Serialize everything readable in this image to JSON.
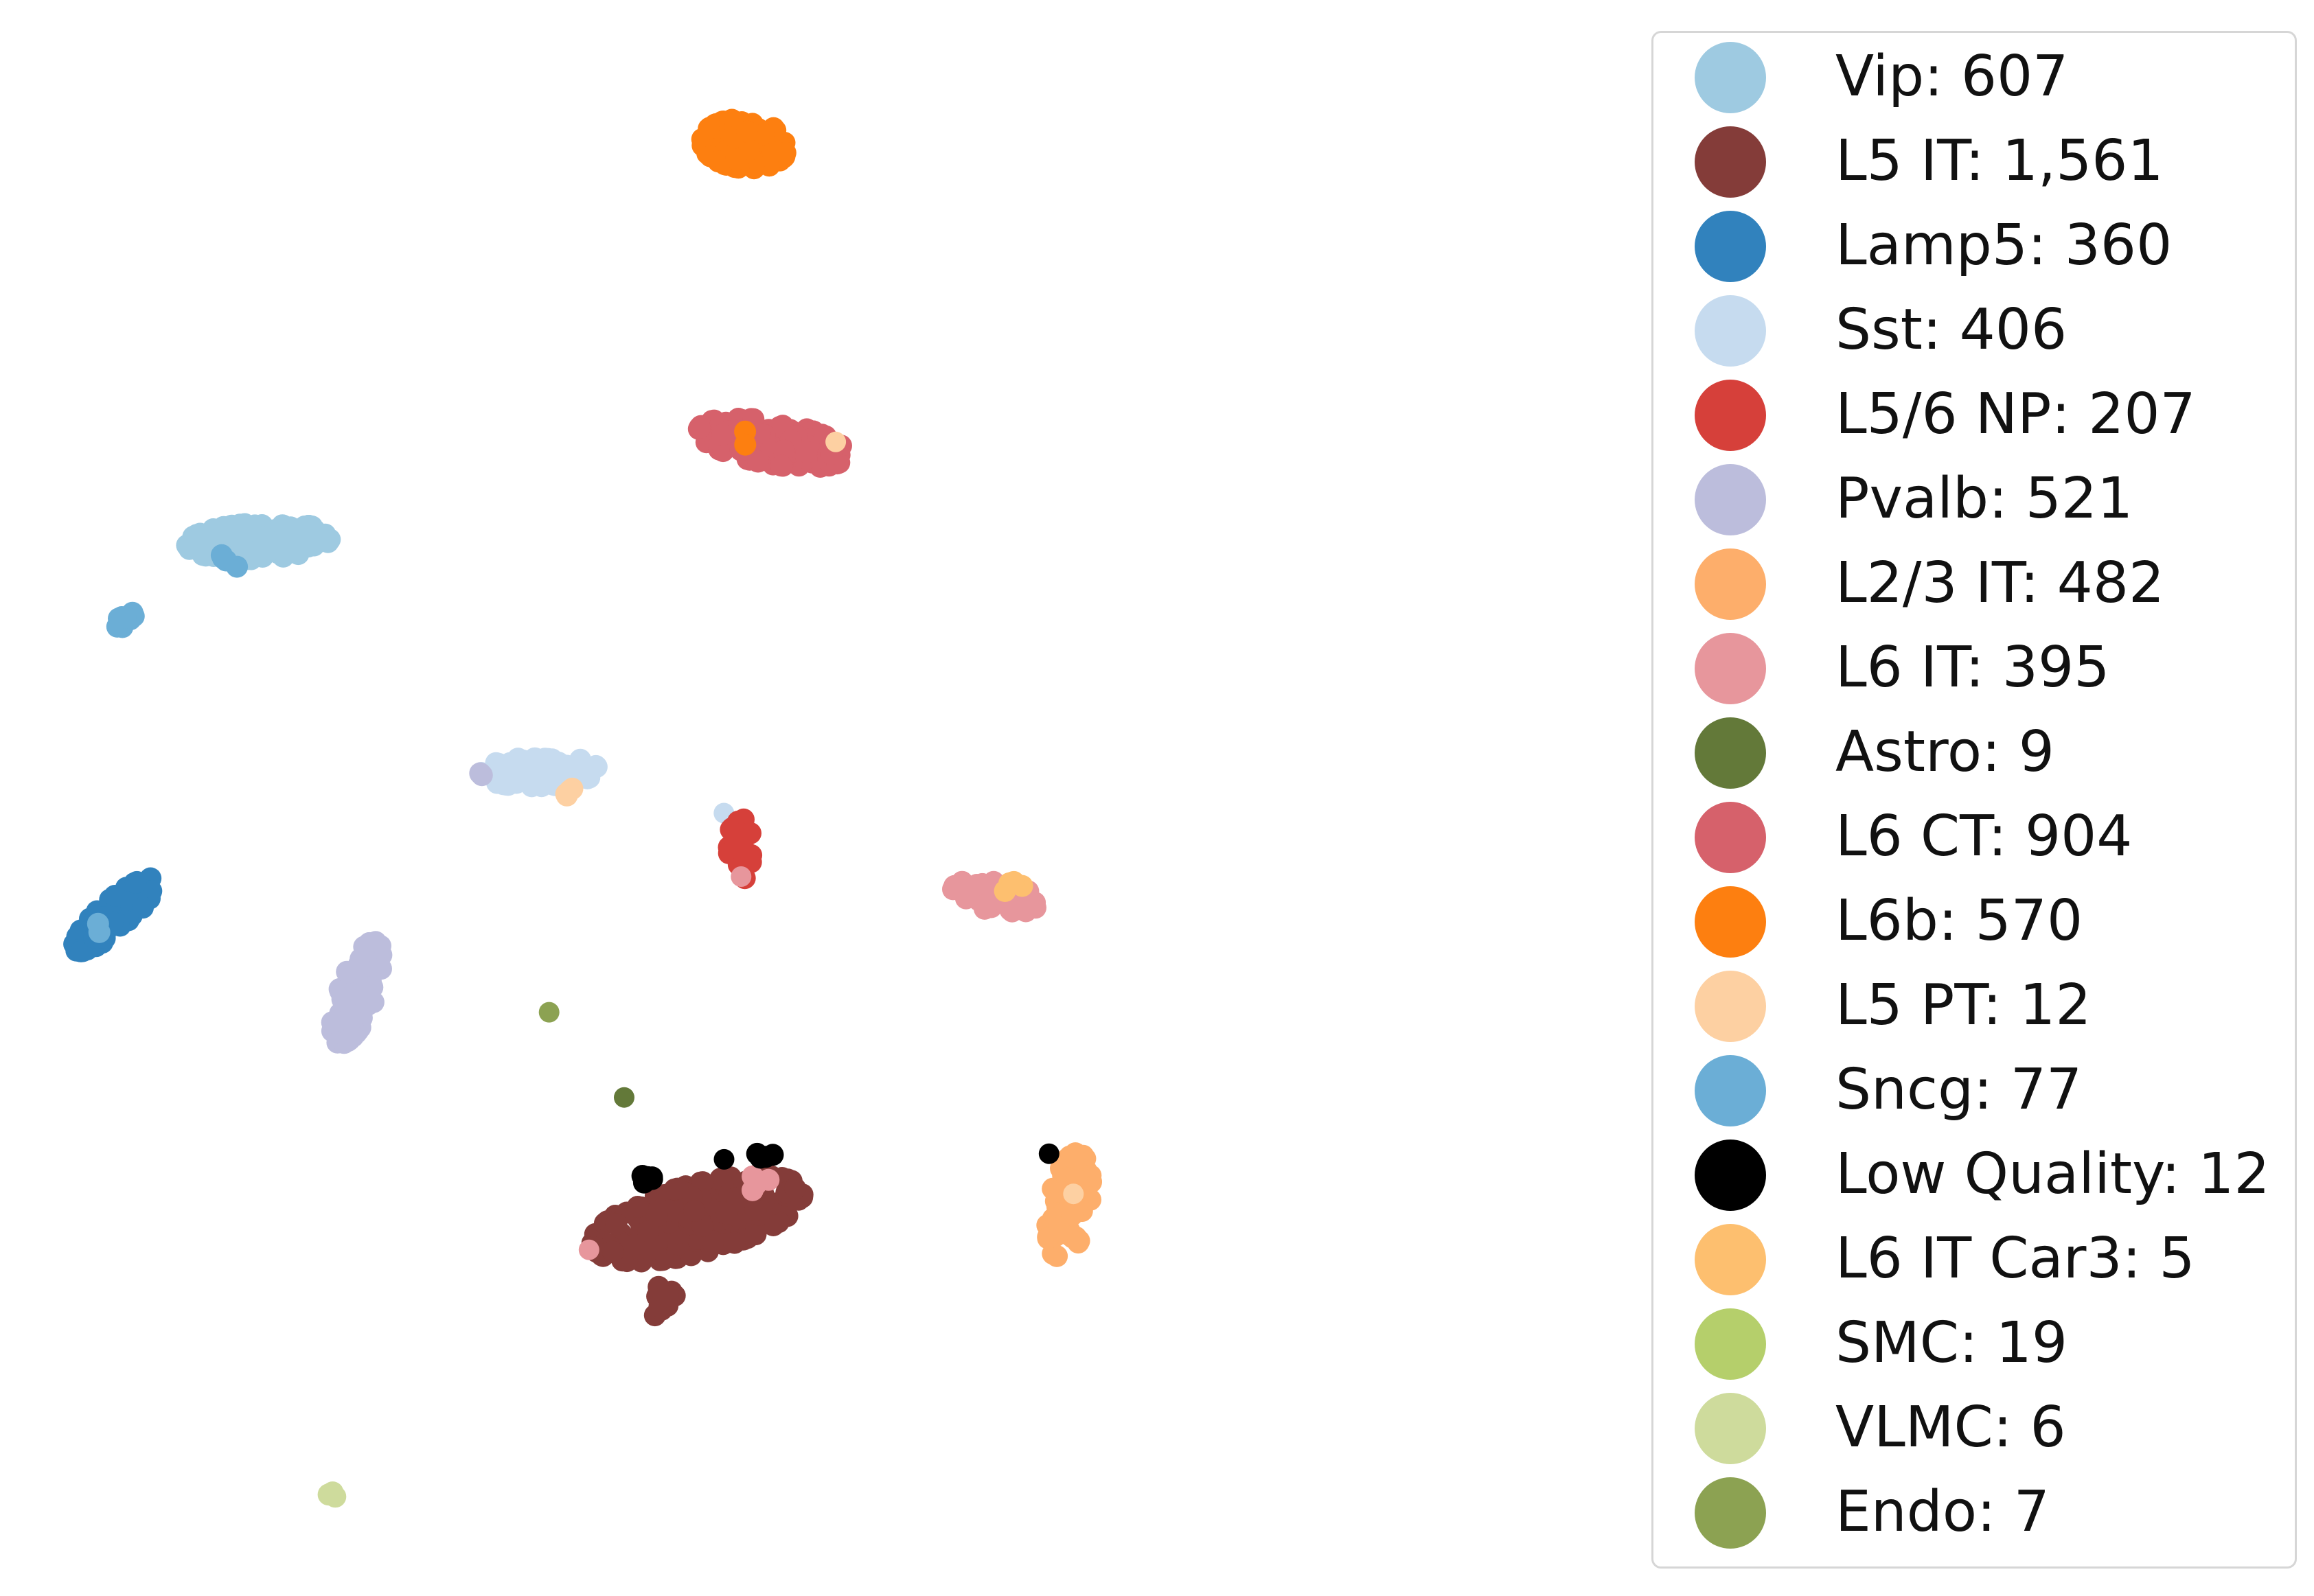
{
  "chart_data": {
    "type": "scatter",
    "title": "",
    "xlabel": "",
    "ylabel": "",
    "axes_visible": false,
    "grid": false,
    "legend_placement": "right",
    "xlim": [
      0,
      100
    ],
    "ylim": [
      0,
      100
    ],
    "series": [
      {
        "name": "Vip: 607",
        "color": "#9ecae1",
        "clusters": [
          {
            "x": 15.0,
            "y": 66.5,
            "sx": 4.3,
            "sy": 1.1,
            "angle": 3,
            "n": 150
          }
        ]
      },
      {
        "name": "L5 IT: 1,561",
        "color": "#843c39",
        "clusters": [
          {
            "x": 42.5,
            "y": 23.0,
            "sx": 6.5,
            "sy": 2.1,
            "angle": 15,
            "n": 240
          },
          {
            "x": 40.3,
            "y": 17.6,
            "sx": 0.9,
            "sy": 1.0,
            "angle": 0,
            "n": 14
          }
        ]
      },
      {
        "name": "Lamp5: 360",
        "color": "#3182bd",
        "clusters": [
          {
            "x": 6.0,
            "y": 42.5,
            "sx": 3.2,
            "sy": 0.9,
            "angle": 42,
            "n": 90
          }
        ]
      },
      {
        "name": "Sst: 406",
        "color": "#c6dbef",
        "clusters": [
          {
            "x": 32.6,
            "y": 51.7,
            "sx": 3.5,
            "sy": 0.9,
            "angle": 2,
            "n": 90
          },
          {
            "x": 44.0,
            "y": 49.0,
            "sx": 0.2,
            "sy": 0.2,
            "angle": 0,
            "n": 1
          }
        ]
      },
      {
        "name": "L5/6 NP: 207",
        "color": "#d6403a",
        "clusters": [
          {
            "x": 45.2,
            "y": 46.8,
            "sx": 0.7,
            "sy": 2.0,
            "angle": 0,
            "n": 35
          }
        ]
      },
      {
        "name": "Pvalb: 521",
        "color": "#bcbddc",
        "clusters": [
          {
            "x": 21.2,
            "y": 37.5,
            "sx": 3.3,
            "sy": 1.1,
            "angle": 70,
            "n": 95
          },
          {
            "x": 29.0,
            "y": 51.5,
            "sx": 0.15,
            "sy": 0.15,
            "angle": 0,
            "n": 2
          }
        ]
      },
      {
        "name": "L2/3 IT: 482",
        "color": "#fdae6b",
        "clusters": [
          {
            "x": 65.8,
            "y": 23.8,
            "sx": 3.3,
            "sy": 1.2,
            "angle": 80,
            "n": 80
          }
        ]
      },
      {
        "name": "L6 IT: 395",
        "color": "#e7969c",
        "clusters": [
          {
            "x": 61.2,
            "y": 43.7,
            "sx": 2.6,
            "sy": 0.9,
            "angle": -10,
            "n": 60
          },
          {
            "x": 45.3,
            "y": 44.9,
            "sx": 0.1,
            "sy": 0.1,
            "angle": 0,
            "n": 1
          },
          {
            "x": 46.3,
            "y": 25.6,
            "sx": 1.2,
            "sy": 1.0,
            "angle": 0,
            "n": 4
          },
          {
            "x": 35.7,
            "y": 21.0,
            "sx": 0.1,
            "sy": 0.1,
            "angle": 0,
            "n": 1
          }
        ]
      },
      {
        "name": "Astro: 9",
        "color": "#637939",
        "clusters": [
          {
            "x": 37.9,
            "y": 30.8,
            "sx": 0.1,
            "sy": 0.1,
            "angle": 0,
            "n": 1
          }
        ]
      },
      {
        "name": "L6 CT: 904",
        "color": "#d6616b",
        "clusters": [
          {
            "x": 47.2,
            "y": 72.8,
            "sx": 4.5,
            "sy": 1.3,
            "angle": -10,
            "n": 140
          }
        ]
      },
      {
        "name": "L6b: 570",
        "color": "#fd7f10",
        "clusters": [
          {
            "x": 45.5,
            "y": 92.0,
            "sx": 2.6,
            "sy": 1.5,
            "angle": -5,
            "n": 100
          },
          {
            "x": 45.6,
            "y": 72.6,
            "sx": 0.6,
            "sy": 0.9,
            "angle": 0,
            "n": 2
          }
        ]
      },
      {
        "name": "L5 PT: 12",
        "color": "#fdd0a2",
        "clusters": [
          {
            "x": 34.2,
            "y": 50.5,
            "sx": 0.5,
            "sy": 0.4,
            "angle": 0,
            "n": 4
          },
          {
            "x": 51.1,
            "y": 72.8,
            "sx": 0.1,
            "sy": 0.1,
            "angle": 0,
            "n": 1
          },
          {
            "x": 66.0,
            "y": 24.5,
            "sx": 0.1,
            "sy": 0.1,
            "angle": 0,
            "n": 1
          }
        ]
      },
      {
        "name": "Sncg: 77",
        "color": "#6baed6",
        "clusters": [
          {
            "x": 6.7,
            "y": 61.5,
            "sx": 1.1,
            "sy": 0.3,
            "angle": 38,
            "n": 12
          },
          {
            "x": 13.3,
            "y": 65.3,
            "sx": 0.7,
            "sy": 0.5,
            "angle": 0,
            "n": 4
          },
          {
            "x": 5.0,
            "y": 41.4,
            "sx": 0.6,
            "sy": 0.5,
            "angle": 0,
            "n": 2
          }
        ]
      },
      {
        "name": "Low Quality: 12",
        "color": "#000000",
        "clusters": [
          {
            "x": 39.4,
            "y": 25.6,
            "sx": 0.6,
            "sy": 0.3,
            "angle": 0,
            "n": 5
          },
          {
            "x": 46.6,
            "y": 27.1,
            "sx": 0.6,
            "sy": 0.3,
            "angle": 0,
            "n": 4
          },
          {
            "x": 44.2,
            "y": 26.8,
            "sx": 0.1,
            "sy": 0.1,
            "angle": 0,
            "n": 1
          },
          {
            "x": 64.5,
            "y": 27.1,
            "sx": 0.1,
            "sy": 0.1,
            "angle": 0,
            "n": 1
          }
        ]
      },
      {
        "name": "L6 IT Car3: 5",
        "color": "#fdbf6f",
        "clusters": [
          {
            "x": 62.2,
            "y": 44.4,
            "sx": 0.9,
            "sy": 0.4,
            "angle": 0,
            "n": 5
          }
        ]
      },
      {
        "name": "SMC: 19",
        "color": "#b5cf6b",
        "clusters": []
      },
      {
        "name": "VLMC: 6",
        "color": "#cedb9c",
        "clusters": [
          {
            "x": 19.7,
            "y": 5.3,
            "sx": 0.3,
            "sy": 0.2,
            "angle": 0,
            "n": 3
          }
        ]
      },
      {
        "name": "Endo: 7",
        "color": "#8ca252",
        "clusters": [
          {
            "x": 33.2,
            "y": 36.2,
            "sx": 0.1,
            "sy": 0.1,
            "angle": 0,
            "n": 1
          }
        ]
      }
    ]
  }
}
